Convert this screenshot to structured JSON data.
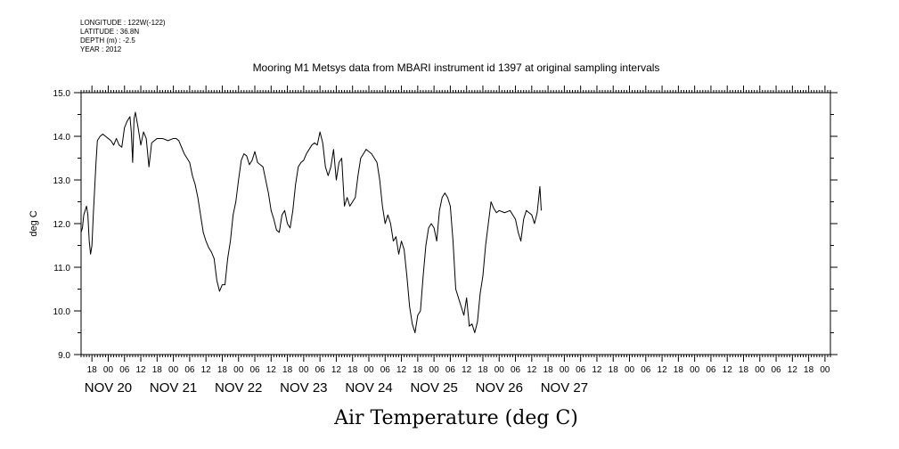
{
  "meta": {
    "longitude": "LONGITUDE : 122W(-122)",
    "latitude": "LATITUDE : 36.8N",
    "depth": "DEPTH (m) : -2.5",
    "year": "YEAR : 2012"
  },
  "chart_data": {
    "type": "line",
    "title": "Mooring M1 Metsys data from MBARI instrument id 1397 at original sampling intervals",
    "xlabel": "Air Temperature (deg C)",
    "ylabel": "deg C",
    "ylim": [
      9.0,
      15.0
    ],
    "yticks": [
      "9.0",
      "10.0",
      "11.0",
      "12.0",
      "13.0",
      "14.0",
      "15.0"
    ],
    "xlim_hours": [
      -10,
      266
    ],
    "hour_ticks": [
      {
        "h": -6,
        "label": "18"
      },
      {
        "h": 0,
        "label": "00"
      },
      {
        "h": 6,
        "label": "06"
      },
      {
        "h": 12,
        "label": "12"
      },
      {
        "h": 18,
        "label": "18"
      },
      {
        "h": 24,
        "label": "00"
      },
      {
        "h": 30,
        "label": "06"
      },
      {
        "h": 36,
        "label": "12"
      },
      {
        "h": 42,
        "label": "18"
      },
      {
        "h": 48,
        "label": "00"
      },
      {
        "h": 54,
        "label": "06"
      },
      {
        "h": 60,
        "label": "12"
      },
      {
        "h": 66,
        "label": "18"
      },
      {
        "h": 72,
        "label": "00"
      },
      {
        "h": 78,
        "label": "06"
      },
      {
        "h": 84,
        "label": "12"
      },
      {
        "h": 90,
        "label": "18"
      },
      {
        "h": 96,
        "label": "00"
      },
      {
        "h": 102,
        "label": "06"
      },
      {
        "h": 108,
        "label": "12"
      },
      {
        "h": 114,
        "label": "18"
      },
      {
        "h": 120,
        "label": "00"
      },
      {
        "h": 126,
        "label": "06"
      },
      {
        "h": 132,
        "label": "12"
      },
      {
        "h": 138,
        "label": "18"
      },
      {
        "h": 144,
        "label": "00"
      },
      {
        "h": 150,
        "label": "06"
      },
      {
        "h": 156,
        "label": "12"
      },
      {
        "h": 162,
        "label": "18"
      },
      {
        "h": 168,
        "label": "00"
      },
      {
        "h": 174,
        "label": "06"
      },
      {
        "h": 180,
        "label": "12"
      },
      {
        "h": 186,
        "label": "18"
      },
      {
        "h": 192,
        "label": "00"
      },
      {
        "h": 198,
        "label": "06"
      },
      {
        "h": 204,
        "label": "12"
      },
      {
        "h": 210,
        "label": "18"
      },
      {
        "h": 216,
        "label": "00"
      },
      {
        "h": 222,
        "label": "06"
      },
      {
        "h": 228,
        "label": "12"
      },
      {
        "h": 234,
        "label": "18"
      },
      {
        "h": 240,
        "label": "00"
      },
      {
        "h": 246,
        "label": "06"
      },
      {
        "h": 252,
        "label": "12"
      },
      {
        "h": 258,
        "label": "18"
      },
      {
        "h": 264,
        "label": "00"
      }
    ],
    "day_labels": [
      {
        "h": 0,
        "label": "NOV 20"
      },
      {
        "h": 24,
        "label": "NOV 21"
      },
      {
        "h": 48,
        "label": "NOV 22"
      },
      {
        "h": 72,
        "label": "NOV 23"
      },
      {
        "h": 96,
        "label": "NOV 24"
      },
      {
        "h": 120,
        "label": "NOV 25"
      },
      {
        "h": 144,
        "label": "NOV 26"
      },
      {
        "h": 168,
        "label": "NOV 27"
      }
    ],
    "series": [
      {
        "color": "#000000",
        "points": [
          [
            -10,
            11.8
          ],
          [
            -9.5,
            11.9
          ],
          [
            -9,
            12.2
          ],
          [
            -8.5,
            12.3
          ],
          [
            -8,
            12.4
          ],
          [
            -7.5,
            12.2
          ],
          [
            -7,
            11.6
          ],
          [
            -6.5,
            11.3
          ],
          [
            -6,
            11.5
          ],
          [
            -5.5,
            12.2
          ],
          [
            -5,
            12.8
          ],
          [
            -4.5,
            13.4
          ],
          [
            -4,
            13.9
          ],
          [
            -3,
            14.0
          ],
          [
            -2,
            14.05
          ],
          [
            -1,
            14.0
          ],
          [
            0,
            13.95
          ],
          [
            1,
            13.9
          ],
          [
            2,
            13.8
          ],
          [
            3,
            13.95
          ],
          [
            4,
            13.8
          ],
          [
            5,
            13.75
          ],
          [
            6,
            14.2
          ],
          [
            7,
            14.35
          ],
          [
            8,
            14.45
          ],
          [
            8.5,
            14.1
          ],
          [
            9,
            13.4
          ],
          [
            9.5,
            14.4
          ],
          [
            10,
            14.55
          ],
          [
            11,
            14.2
          ],
          [
            12,
            13.8
          ],
          [
            13,
            14.1
          ],
          [
            14,
            13.95
          ],
          [
            15,
            13.3
          ],
          [
            16,
            13.85
          ],
          [
            17,
            13.9
          ],
          [
            18,
            13.95
          ],
          [
            20,
            13.95
          ],
          [
            22,
            13.9
          ],
          [
            24,
            13.95
          ],
          [
            25,
            13.95
          ],
          [
            26,
            13.9
          ],
          [
            27,
            13.75
          ],
          [
            28,
            13.6
          ],
          [
            29,
            13.5
          ],
          [
            30,
            13.4
          ],
          [
            31,
            13.1
          ],
          [
            32,
            12.9
          ],
          [
            33,
            12.6
          ],
          [
            34,
            12.2
          ],
          [
            35,
            11.8
          ],
          [
            36,
            11.6
          ],
          [
            37,
            11.45
          ],
          [
            38,
            11.35
          ],
          [
            39,
            11.2
          ],
          [
            40,
            10.7
          ],
          [
            41,
            10.45
          ],
          [
            42,
            10.6
          ],
          [
            43,
            10.6
          ],
          [
            44,
            11.2
          ],
          [
            45,
            11.6
          ],
          [
            46,
            12.2
          ],
          [
            47,
            12.5
          ],
          [
            48,
            13.0
          ],
          [
            49,
            13.45
          ],
          [
            50,
            13.6
          ],
          [
            51,
            13.55
          ],
          [
            52,
            13.35
          ],
          [
            53,
            13.45
          ],
          [
            54,
            13.65
          ],
          [
            55,
            13.4
          ],
          [
            56,
            13.35
          ],
          [
            57,
            13.3
          ],
          [
            58,
            13.0
          ],
          [
            59,
            12.7
          ],
          [
            60,
            12.3
          ],
          [
            61,
            12.1
          ],
          [
            62,
            11.85
          ],
          [
            63,
            11.8
          ],
          [
            64,
            12.2
          ],
          [
            65,
            12.3
          ],
          [
            66,
            12.0
          ],
          [
            67,
            11.9
          ],
          [
            68,
            12.3
          ],
          [
            69,
            12.9
          ],
          [
            70,
            13.3
          ],
          [
            71,
            13.4
          ],
          [
            72,
            13.45
          ],
          [
            73,
            13.6
          ],
          [
            74,
            13.7
          ],
          [
            75,
            13.8
          ],
          [
            76,
            13.85
          ],
          [
            77,
            13.8
          ],
          [
            78,
            14.1
          ],
          [
            79,
            13.85
          ],
          [
            80,
            13.3
          ],
          [
            81,
            13.1
          ],
          [
            82,
            13.3
          ],
          [
            83,
            13.7
          ],
          [
            84,
            13.0
          ],
          [
            85,
            13.4
          ],
          [
            86,
            13.5
          ],
          [
            87,
            12.4
          ],
          [
            88,
            12.6
          ],
          [
            89,
            12.4
          ],
          [
            90,
            12.5
          ],
          [
            91,
            12.6
          ],
          [
            92,
            13.1
          ],
          [
            93,
            13.5
          ],
          [
            94,
            13.6
          ],
          [
            95,
            13.7
          ],
          [
            96,
            13.65
          ],
          [
            97,
            13.6
          ],
          [
            98,
            13.5
          ],
          [
            99,
            13.4
          ],
          [
            100,
            13.0
          ],
          [
            101,
            12.4
          ],
          [
            102,
            12.0
          ],
          [
            103,
            12.2
          ],
          [
            104,
            12.0
          ],
          [
            105,
            11.6
          ],
          [
            106,
            11.7
          ],
          [
            107,
            11.3
          ],
          [
            108,
            11.6
          ],
          [
            109,
            11.4
          ],
          [
            110,
            10.8
          ],
          [
            111,
            10.1
          ],
          [
            112,
            9.7
          ],
          [
            113,
            9.5
          ],
          [
            114,
            9.9
          ],
          [
            115,
            10.0
          ],
          [
            116,
            10.8
          ],
          [
            117,
            11.5
          ],
          [
            118,
            11.9
          ],
          [
            119,
            12.0
          ],
          [
            120,
            11.9
          ],
          [
            121,
            11.6
          ],
          [
            122,
            12.3
          ],
          [
            123,
            12.6
          ],
          [
            124,
            12.7
          ],
          [
            125,
            12.6
          ],
          [
            126,
            12.4
          ],
          [
            127,
            11.6
          ],
          [
            128,
            10.5
          ],
          [
            129,
            10.3
          ],
          [
            130,
            10.1
          ],
          [
            131,
            9.9
          ],
          [
            132,
            10.3
          ],
          [
            133,
            9.65
          ],
          [
            134,
            9.7
          ],
          [
            135,
            9.5
          ],
          [
            136,
            9.75
          ],
          [
            137,
            10.4
          ],
          [
            138,
            10.8
          ],
          [
            139,
            11.5
          ],
          [
            140,
            12.0
          ],
          [
            141,
            12.5
          ],
          [
            142,
            12.35
          ],
          [
            143,
            12.25
          ],
          [
            144,
            12.3
          ],
          [
            146,
            12.25
          ],
          [
            148,
            12.3
          ],
          [
            150,
            12.1
          ],
          [
            151,
            11.8
          ],
          [
            152,
            11.6
          ],
          [
            153,
            12.1
          ],
          [
            154,
            12.3
          ],
          [
            155,
            12.25
          ],
          [
            156,
            12.2
          ],
          [
            157,
            12.0
          ],
          [
            158,
            12.25
          ],
          [
            159,
            12.85
          ],
          [
            159.5,
            12.3
          ]
        ]
      }
    ]
  }
}
